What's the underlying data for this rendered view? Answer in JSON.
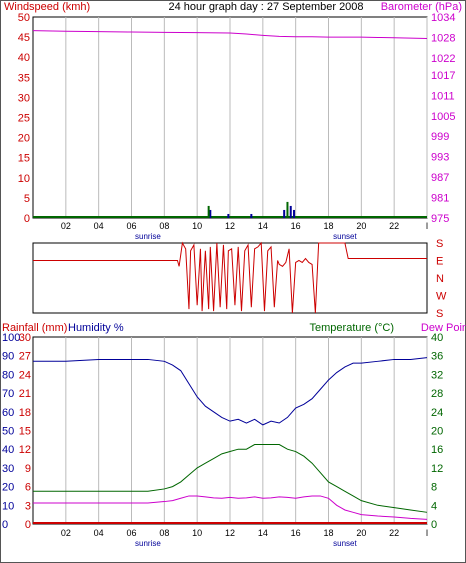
{
  "colors": {
    "wind": "#cc0000",
    "barometer": "#cc00cc",
    "direction": "#cc0000",
    "rain": "#cc0000",
    "humidity": "#000099",
    "temperature": "#006600",
    "dewpoint": "#cc00cc",
    "grid": "#bbbbbb",
    "axis": "#000000"
  },
  "chart_data": [
    {
      "type": "line",
      "title": "24 hour graph day : 27 September 2008",
      "ylabel": "Windspeed (kmh)",
      "ylabel_right": "Barometer (hPa)",
      "x_ticks": [
        "02",
        "04",
        "06",
        "08",
        "10",
        "12",
        "14",
        "16",
        "18",
        "20",
        "22",
        "l"
      ],
      "x_markers": [
        {
          "label": "sunrise",
          "x": 7
        },
        {
          "label": "sunset",
          "x": 19
        }
      ],
      "xlim": [
        0,
        24
      ],
      "ylim": [
        0,
        50
      ],
      "y_ticks": [
        0,
        5,
        10,
        15,
        20,
        25,
        30,
        35,
        40,
        45,
        50
      ],
      "ylim_right": [
        975,
        1034
      ],
      "y_ticks_right": [
        975,
        981,
        987,
        993,
        999,
        1005,
        1011,
        1017,
        1022,
        1028,
        1034
      ],
      "series": [
        {
          "name": "Barometer",
          "axis": "right",
          "x": [
            0,
            2,
            4,
            6,
            8,
            10,
            12,
            13,
            14,
            15,
            16,
            17,
            18,
            19,
            20,
            21,
            22,
            23,
            24
          ],
          "y": [
            1030.0,
            1029.8,
            1029.7,
            1029.6,
            1029.5,
            1029.4,
            1029.3,
            1029.0,
            1028.6,
            1028.3,
            1028.2,
            1028.2,
            1028.1,
            1028.1,
            1028.1,
            1028.0,
            1027.9,
            1027.8,
            1027.7
          ]
        },
        {
          "name": "Windspeed",
          "axis": "left",
          "type": "bar",
          "x": [
            10.8,
            11.9,
            13.3,
            15.3,
            15.7,
            15.9
          ],
          "y": [
            2,
            1,
            1,
            2,
            3,
            2
          ]
        },
        {
          "name": "Gust",
          "axis": "left",
          "type": "bar",
          "x": [
            10.7,
            15.5
          ],
          "y": [
            3,
            4
          ]
        }
      ]
    },
    {
      "type": "line",
      "ylabel_right": [
        "S",
        "E",
        "N",
        "W",
        "S"
      ],
      "xlim": [
        0,
        24
      ],
      "ylim": [
        0,
        360
      ],
      "series": [
        {
          "name": "Wind direction",
          "x": [
            0,
            8.8,
            8.9,
            9.1,
            9.3,
            9.5,
            9.6,
            9.8,
            10.0,
            10.2,
            10.3,
            10.5,
            10.7,
            10.8,
            11.0,
            11.2,
            11.4,
            11.6,
            11.8,
            11.9,
            12.1,
            12.3,
            12.5,
            12.7,
            12.9,
            13.1,
            13.3,
            13.5,
            13.7,
            13.9,
            14.1,
            14.3,
            14.5,
            14.7,
            14.9,
            15.0,
            15.2,
            15.4,
            15.6,
            15.8,
            16.0,
            16.2,
            16.4,
            16.6,
            16.8,
            17.0,
            17.2,
            17.4,
            19.0,
            19.2,
            23.8,
            24
          ],
          "y": [
            90,
            90,
            120,
            0,
            30,
            340,
            40,
            10,
            320,
            30,
            350,
            40,
            340,
            20,
            350,
            0,
            330,
            10,
            340,
            40,
            30,
            320,
            20,
            350,
            40,
            10,
            330,
            30,
            20,
            0,
            350,
            40,
            20,
            330,
            90,
            110,
            120,
            100,
            30,
            360,
            100,
            90,
            100,
            80,
            100,
            110,
            360,
            0,
            0,
            80,
            80,
            80
          ]
        }
      ]
    },
    {
      "type": "line",
      "ylabel": "Rainfall (mm)",
      "ylabel2": "Humidity %",
      "ylabel_right": "Temperature (°C)",
      "ylabel_right2": "Dew Point",
      "x_ticks": [
        "02",
        "04",
        "06",
        "08",
        "10",
        "12",
        "14",
        "16",
        "18",
        "20",
        "22",
        "l"
      ],
      "x_markers": [
        {
          "label": "sunrise",
          "x": 7
        },
        {
          "label": "sunset",
          "x": 19
        }
      ],
      "xlim": [
        0,
        24
      ],
      "ylim": [
        0,
        30
      ],
      "y_ticks_rain": [
        0,
        3,
        6,
        9,
        12,
        15,
        18,
        21,
        24,
        27,
        30
      ],
      "y_ticks_humidity": [
        0,
        10,
        20,
        30,
        40,
        50,
        60,
        70,
        80,
        90,
        100
      ],
      "ylim_right": [
        0,
        40
      ],
      "y_ticks_right": [
        0,
        4,
        8,
        12,
        16,
        20,
        24,
        28,
        32,
        36,
        40
      ],
      "series": [
        {
          "name": "Humidity",
          "axis": "humidity",
          "x": [
            0,
            2,
            4,
            6,
            7,
            8,
            8.5,
            9,
            9.5,
            10,
            10.5,
            11,
            11.5,
            12,
            12.5,
            13,
            13.5,
            14,
            14.5,
            15,
            15.5,
            16,
            16.5,
            17,
            17.5,
            18,
            18.5,
            19,
            19.5,
            20,
            21,
            22,
            23,
            24
          ],
          "y": [
            87,
            87,
            88,
            88,
            88,
            87,
            85,
            82,
            75,
            68,
            63,
            60,
            57,
            55,
            56,
            54,
            56,
            53,
            55,
            54,
            57,
            62,
            64,
            67,
            72,
            77,
            81,
            84,
            86,
            86,
            87,
            88,
            88,
            89
          ]
        },
        {
          "name": "Temperature",
          "axis": "right",
          "x": [
            0,
            2,
            4,
            6,
            7,
            8,
            8.5,
            9,
            9.5,
            10,
            10.5,
            11,
            11.5,
            12,
            12.5,
            13,
            13.5,
            14,
            14.5,
            15,
            15.5,
            16,
            16.5,
            17,
            17.5,
            18,
            18.5,
            19,
            19.5,
            20,
            21,
            22,
            23,
            24
          ],
          "y": [
            7,
            7,
            7,
            7,
            7,
            7.5,
            8,
            9,
            10.5,
            12,
            13,
            14,
            15,
            15.5,
            16,
            16,
            17,
            17,
            17,
            17,
            16,
            15.5,
            14.5,
            13,
            11,
            9,
            8,
            7,
            6,
            5,
            4,
            3.5,
            3,
            2.5
          ]
        },
        {
          "name": "Dew Point",
          "axis": "right",
          "x": [
            0,
            2,
            4,
            6,
            7,
            8,
            8.5,
            9,
            9.5,
            10,
            10.5,
            11,
            11.5,
            12,
            12.5,
            13,
            13.5,
            14,
            14.5,
            15,
            15.5,
            16,
            16.5,
            17,
            17.5,
            18,
            18.5,
            19,
            19.5,
            20,
            21,
            22,
            23,
            24
          ],
          "y": [
            4.5,
            4.5,
            4.5,
            4.5,
            4.5,
            4.8,
            5,
            5.5,
            6,
            6,
            5.8,
            5.6,
            5.5,
            5.7,
            5.5,
            5.6,
            5.8,
            5.5,
            5.6,
            5.8,
            5.7,
            5.5,
            5.8,
            6,
            6,
            5.5,
            4,
            3,
            2.5,
            2,
            1.7,
            1.5,
            1.2,
            1
          ]
        },
        {
          "name": "Rainfall",
          "axis": "rain",
          "x": [
            0,
            24
          ],
          "y": [
            0,
            0
          ]
        }
      ]
    }
  ]
}
